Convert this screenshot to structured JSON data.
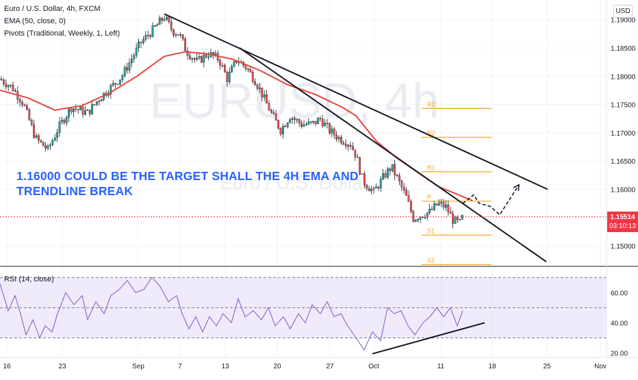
{
  "header": {
    "symbol_line": "Euro / U.S. Dollar, 4h, FXCM",
    "ema_line": "EMA (50, close, 0)",
    "pivots_line": "Pivots (Traditional, Weekly, 1, Left)",
    "currency_button": "USD"
  },
  "watermark": {
    "main": "EURUSD, 4h",
    "sub": "Euro / U.S. Dollar"
  },
  "annotation": {
    "line1": "1.16000 COULD BE THE TARGET SHALL THE 4H EMA AND",
    "line2": "TRENDLINE BREAK"
  },
  "current_price": {
    "value": "1.15514",
    "countdown": "03:10:13"
  },
  "colors": {
    "candle_up": "#26a69a",
    "candle_down": "#ef5350",
    "ema": "#e8453c",
    "pivot": "#f5a623",
    "rsi": "#7e57c2",
    "rsi_band": "#e1dbf5",
    "trendline": "#131722",
    "headline": "#2962ff",
    "price_line": "#f23645"
  },
  "chart_data": [
    {
      "type": "candlestick",
      "title": "Euro / U.S. Dollar, 4h, FXCM",
      "x_ticks": [
        "16",
        "23",
        "Sep",
        "7",
        "13",
        "20",
        "27",
        "Oct",
        "11",
        "18",
        "25",
        "Nov"
      ],
      "y_ticks": [
        "1.19000",
        "1.18500",
        "1.18000",
        "1.17500",
        "1.17000",
        "1.16500",
        "1.16000",
        "1.15000"
      ],
      "ylim": [
        1.1465,
        1.1925
      ],
      "close_path": [
        [
          0,
          1.1795
        ],
        [
          18,
          1.178
        ],
        [
          34,
          1.1752
        ],
        [
          52,
          1.169
        ],
        [
          70,
          1.167
        ],
        [
          86,
          1.171
        ],
        [
          104,
          1.1745
        ],
        [
          128,
          1.1735
        ],
        [
          146,
          1.1762
        ],
        [
          162,
          1.178
        ],
        [
          178,
          1.18
        ],
        [
          192,
          1.183
        ],
        [
          206,
          1.186
        ],
        [
          222,
          1.188
        ],
        [
          240,
          1.1905
        ],
        [
          252,
          1.188
        ],
        [
          262,
          1.1875
        ],
        [
          272,
          1.1845
        ],
        [
          288,
          1.1825
        ],
        [
          304,
          1.184
        ],
        [
          320,
          1.183
        ],
        [
          332,
          1.1795
        ],
        [
          346,
          1.183
        ],
        [
          360,
          1.1815
        ],
        [
          374,
          1.179
        ],
        [
          386,
          1.176
        ],
        [
          398,
          1.173
        ],
        [
          410,
          1.1705
        ],
        [
          424,
          1.173
        ],
        [
          440,
          1.1715
        ],
        [
          456,
          1.1715
        ],
        [
          468,
          1.1725
        ],
        [
          480,
          1.1705
        ],
        [
          496,
          1.169
        ],
        [
          512,
          1.168
        ],
        [
          520,
          1.166
        ],
        [
          530,
          1.1615
        ],
        [
          546,
          1.1595
        ],
        [
          562,
          1.1625
        ],
        [
          572,
          1.164
        ],
        [
          582,
          1.1615
        ],
        [
          594,
          1.1585
        ],
        [
          604,
          1.1548
        ],
        [
          616,
          1.1555
        ],
        [
          628,
          1.156
        ],
        [
          640,
          1.1575
        ],
        [
          652,
          1.1568
        ],
        [
          662,
          1.1545
        ],
        [
          672,
          1.154
        ],
        [
          676,
          1.1552
        ]
      ],
      "ema": [
        [
          0,
          1.1775
        ],
        [
          40,
          1.1762
        ],
        [
          80,
          1.174
        ],
        [
          120,
          1.1748
        ],
        [
          160,
          1.177
        ],
        [
          200,
          1.18
        ],
        [
          240,
          1.1835
        ],
        [
          270,
          1.1843
        ],
        [
          300,
          1.184
        ],
        [
          340,
          1.183
        ],
        [
          380,
          1.181
        ],
        [
          420,
          1.1785
        ],
        [
          460,
          1.1768
        ],
        [
          500,
          1.1745
        ],
        [
          520,
          1.173
        ],
        [
          550,
          1.1685
        ],
        [
          580,
          1.1655
        ],
        [
          610,
          1.163
        ],
        [
          640,
          1.1605
        ],
        [
          670,
          1.159
        ],
        [
          690,
          1.158
        ]
      ],
      "pivots": [
        {
          "label": "R3",
          "value": 1.1743
        },
        {
          "label": "R2",
          "value": 1.1692
        },
        {
          "label": "R1",
          "value": 1.1631
        },
        {
          "label": "P",
          "value": 1.1579
        },
        {
          "label": "S1",
          "value": 1.1519
        },
        {
          "label": "S2",
          "value": 1.1467
        }
      ],
      "trendlines": [
        {
          "from": [
            240,
            1.191
          ],
          "to": [
            800,
            1.16
          ]
        },
        {
          "from": [
            350,
            1.185
          ],
          "to": [
            798,
            1.1472
          ]
        }
      ],
      "projection_arrow": [
        [
          676,
          1.1575
        ],
        [
          692,
          1.159
        ],
        [
          700,
          1.1575
        ],
        [
          716,
          1.157
        ],
        [
          730,
          1.1555
        ],
        [
          758,
          1.1608
        ]
      ],
      "current_price": 1.15514
    },
    {
      "type": "line",
      "title": "RSI (14, close)",
      "y_ticks": [
        "60.00",
        "40.00",
        "20.00"
      ],
      "ylim": [
        18,
        76
      ],
      "band": [
        30,
        70
      ],
      "mid": 50,
      "series": [
        {
          "name": "RSI (14, close)",
          "values": [
            [
              0,
              66
            ],
            [
              12,
              48
            ],
            [
              22,
              58
            ],
            [
              30,
              46
            ],
            [
              38,
              32
            ],
            [
              48,
              42
            ],
            [
              58,
              30
            ],
            [
              66,
              38
            ],
            [
              76,
              34
            ],
            [
              84,
              46
            ],
            [
              96,
              60
            ],
            [
              108,
              52
            ],
            [
              120,
              58
            ],
            [
              128,
              42
            ],
            [
              140,
              54
            ],
            [
              152,
              46
            ],
            [
              162,
              58
            ],
            [
              174,
              62
            ],
            [
              186,
              68
            ],
            [
              198,
              60
            ],
            [
              210,
              62
            ],
            [
              222,
              70
            ],
            [
              234,
              64
            ],
            [
              246,
              54
            ],
            [
              258,
              58
            ],
            [
              266,
              46
            ],
            [
              276,
              36
            ],
            [
              286,
              44
            ],
            [
              296,
              34
            ],
            [
              306,
              44
            ],
            [
              316,
              38
            ],
            [
              326,
              46
            ],
            [
              338,
              40
            ],
            [
              348,
              56
            ],
            [
              358,
              44
            ],
            [
              370,
              48
            ],
            [
              382,
              42
            ],
            [
              392,
              50
            ],
            [
              402,
              38
            ],
            [
              414,
              44
            ],
            [
              424,
              36
            ],
            [
              436,
              46
            ],
            [
              446,
              40
            ],
            [
              456,
              52
            ],
            [
              468,
              46
            ],
            [
              478,
              54
            ],
            [
              488,
              44
            ],
            [
              498,
              46
            ],
            [
              508,
              38
            ],
            [
              520,
              30
            ],
            [
              532,
              22
            ],
            [
              544,
              34
            ],
            [
              556,
              28
            ],
            [
              566,
              50
            ],
            [
              576,
              46
            ],
            [
              586,
              48
            ],
            [
              596,
              38
            ],
            [
              606,
              32
            ],
            [
              618,
              40
            ],
            [
              628,
              44
            ],
            [
              638,
              50
            ],
            [
              648,
              44
            ],
            [
              658,
              50
            ],
            [
              668,
              38
            ],
            [
              676,
              48
            ]
          ]
        }
      ],
      "trendline": {
        "from": [
          544,
          19.5
        ],
        "to": [
          708,
          40
        ]
      }
    }
  ],
  "x_axis": {
    "ticks": [
      "16",
      "23",
      "Sep",
      "7",
      "13",
      "20",
      "27",
      "Oct",
      "11",
      "18",
      "25",
      "Nov"
    ]
  }
}
